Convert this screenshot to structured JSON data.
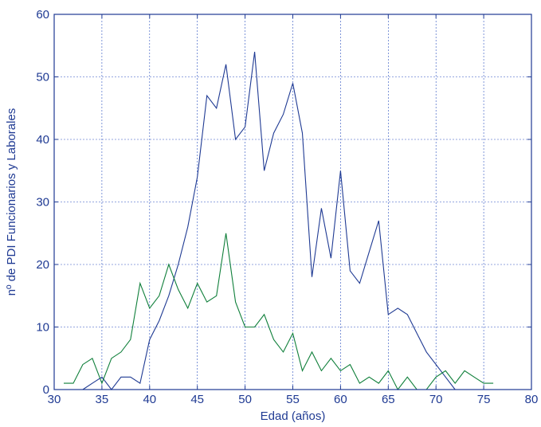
{
  "chart_data": {
    "type": "line",
    "title": "",
    "xlabel": "Edad (años)",
    "ylabel": "nº de PDI Funcionarios y Laborales",
    "xlim": [
      30,
      80
    ],
    "ylim": [
      0,
      60
    ],
    "xticks": [
      30,
      35,
      40,
      45,
      50,
      55,
      60,
      65,
      70,
      75,
      80
    ],
    "yticks": [
      0,
      10,
      20,
      30,
      40,
      50,
      60
    ],
    "grid": true,
    "legend": "none",
    "colors": {
      "axis": "#1f3a93",
      "grid": "#2a4fbf",
      "blue_series": "#1f3a93",
      "green_series": "#0f7f3a"
    },
    "series": [
      {
        "color": "#1f3a93",
        "x": [
          33,
          34,
          35,
          36,
          37,
          38,
          39,
          40,
          41,
          42,
          43,
          44,
          45,
          46,
          47,
          48,
          49,
          50,
          51,
          52,
          53,
          54,
          55,
          56,
          57,
          58,
          59,
          60,
          61,
          62,
          63,
          64,
          65,
          66,
          67,
          68,
          69,
          70,
          71,
          72
        ],
        "y": [
          0,
          1,
          2,
          0,
          2,
          2,
          1,
          8,
          11,
          15,
          20,
          26,
          34,
          47,
          45,
          52,
          40,
          42,
          54,
          35,
          41,
          44,
          49,
          41,
          18,
          29,
          21,
          35,
          19,
          17,
          22,
          27,
          12,
          13,
          12,
          9,
          6,
          4,
          2,
          0
        ]
      },
      {
        "color": "#0f7f3a",
        "x": [
          31,
          32,
          33,
          34,
          35,
          36,
          37,
          38,
          39,
          40,
          41,
          42,
          43,
          44,
          45,
          46,
          47,
          48,
          49,
          50,
          51,
          52,
          53,
          54,
          55,
          56,
          57,
          58,
          59,
          60,
          61,
          62,
          63,
          64,
          65,
          66,
          67,
          68,
          69,
          70,
          71,
          72,
          73,
          74,
          75,
          76
        ],
        "y": [
          1,
          1,
          4,
          5,
          1,
          5,
          6,
          8,
          17,
          13,
          15,
          20,
          16,
          13,
          17,
          14,
          15,
          25,
          14,
          10,
          10,
          12,
          8,
          6,
          9,
          3,
          6,
          3,
          5,
          3,
          4,
          1,
          2,
          1,
          3,
          0,
          2,
          0,
          0,
          2,
          3,
          1,
          3,
          2,
          1,
          1
        ]
      }
    ]
  }
}
